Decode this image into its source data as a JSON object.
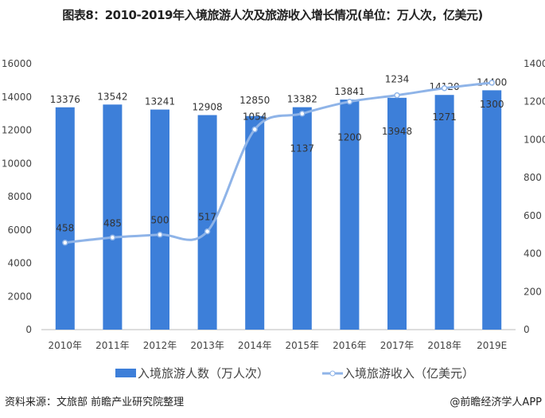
{
  "chart_data": {
    "type": "bar",
    "title": "图表8：2010-2019年入境旅游人次及旅游收入增长情况(单位：万人次，亿美元)",
    "categories": [
      "2010年",
      "2011年",
      "2012年",
      "2013年",
      "2014年",
      "2015年",
      "2016年",
      "2017年",
      "2018年",
      "2019E"
    ],
    "series": [
      {
        "name": "入境旅游人数（万人次）",
        "type": "bar",
        "axis": "left",
        "color": "#3d7fd9",
        "values": [
          13376,
          13542,
          13241,
          12908,
          12850,
          13382,
          13841,
          13948,
          14120,
          14400
        ]
      },
      {
        "name": "入境旅游收入（亿美元）",
        "type": "line",
        "axis": "right",
        "color": "#8fb4e8",
        "values": [
          458,
          485,
          500,
          517,
          1054,
          1137,
          1200,
          1234,
          1271,
          1300
        ]
      }
    ],
    "ylim_left": [
      0,
      16000
    ],
    "yticks_left": [
      0,
      2000,
      4000,
      6000,
      8000,
      10000,
      12000,
      14000,
      16000
    ],
    "ylim_right": [
      0,
      1400
    ],
    "yticks_right": [
      0,
      200,
      400,
      600,
      800,
      1000,
      1200,
      1400
    ],
    "grid": false,
    "legend": "bottom"
  },
  "footer": {
    "source": "资料来源：文旅部 前瞻产业研究院整理",
    "credit": "@前瞻经济学人APP"
  }
}
